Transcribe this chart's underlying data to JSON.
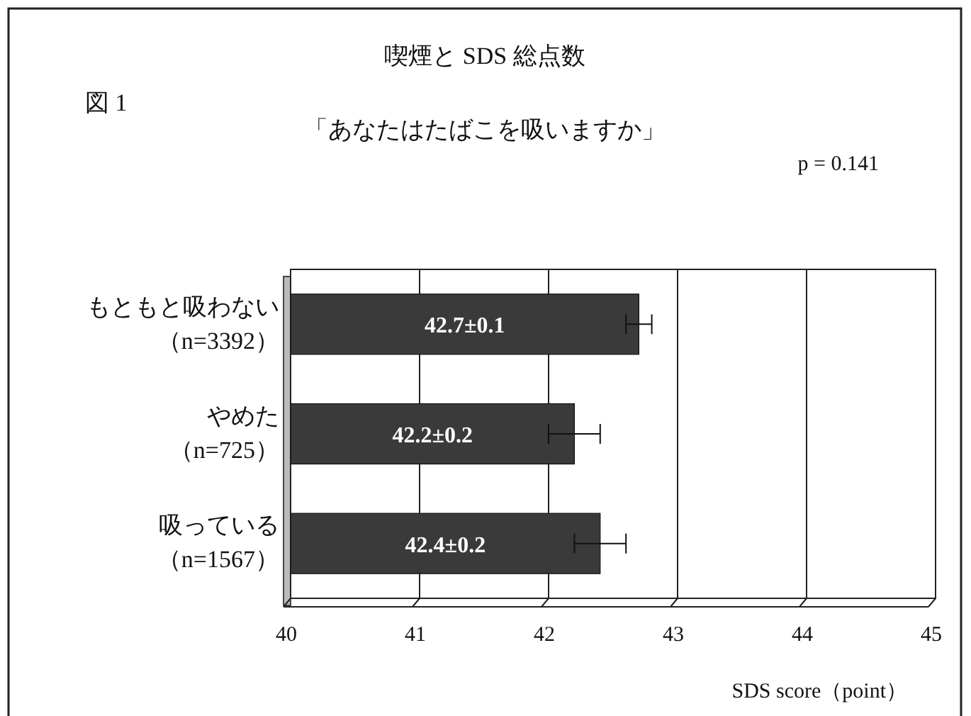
{
  "chart_data": {
    "type": "bar",
    "orientation": "horizontal",
    "title": "喫煙と SDS 総点数",
    "subtitle": "「あなたはたばこを吸いますか」",
    "xlabel": "SDS score（point）",
    "annotations": [
      "図 1",
      "p = 0.141"
    ],
    "categories": [
      "もともと吸わない（n=3392）",
      "やめた（n=725）",
      "吸っている（n=1567）"
    ],
    "values": [
      42.7,
      42.2,
      42.4
    ],
    "errors": [
      0.1,
      0.2,
      0.2
    ],
    "value_labels": [
      "42.7±0.1",
      "42.2±0.2",
      "42.4±0.2"
    ],
    "color": "#3a3a3a",
    "xlim": [
      40,
      45
    ],
    "xticks": [
      40,
      41,
      42,
      43,
      44,
      45
    ],
    "grid": "x"
  }
}
